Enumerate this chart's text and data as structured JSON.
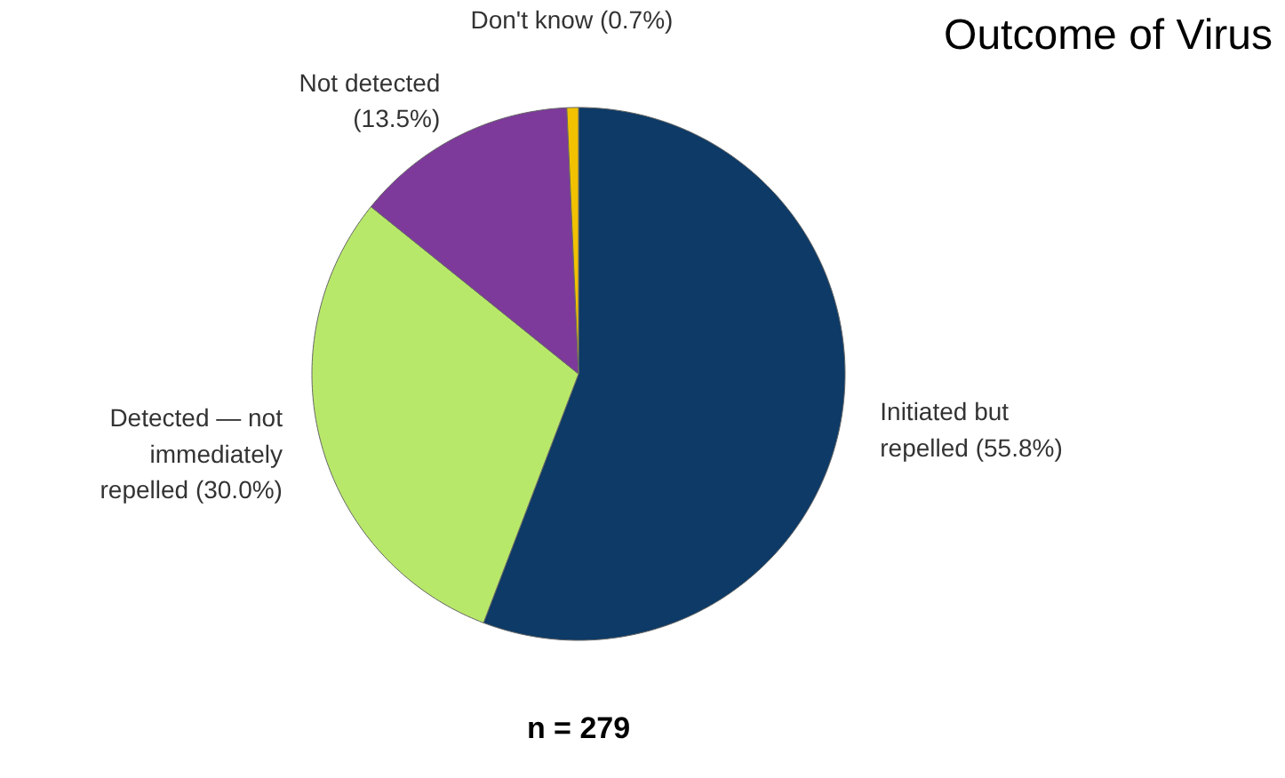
{
  "chart_data": {
    "type": "pie",
    "title": "Outcome of Virus",
    "categories": [
      "Initiated but repelled",
      "Detected — not immediately repelled",
      "Not detected",
      "Don't know"
    ],
    "values": [
      55.8,
      30.0,
      13.5,
      0.7
    ],
    "value_labels": [
      "(55.8%)",
      "(30.0%)",
      "(13.5%)",
      "(0.7%)"
    ],
    "colors": [
      "#0d3a66",
      "#b8e86a",
      "#7d3a9a",
      "#f2c200"
    ],
    "annotations": [
      "n = 279"
    ]
  }
}
